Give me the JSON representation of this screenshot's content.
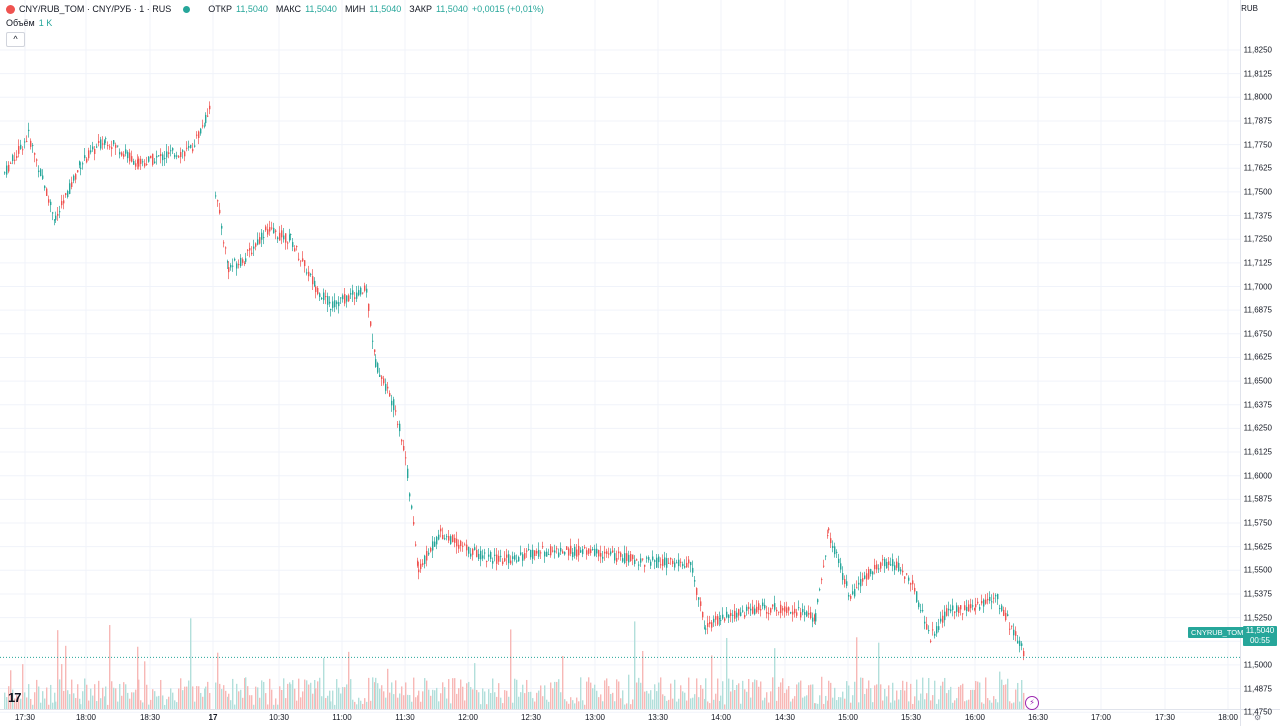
{
  "header": {
    "symbol_title": "CNY/RUB_TOM · CNY/РУБ · 1 · RUS",
    "open_label": "ОТКР",
    "open_value": "11,5040",
    "high_label": "МАКС",
    "high_value": "11,5040",
    "low_label": "МИН",
    "low_value": "11,5040",
    "close_label": "ЗАКР",
    "close_value": "11,5040",
    "change_value": "+0,0015 (+0,01%)"
  },
  "volume_legend": {
    "label": "Объём",
    "value": "1 K"
  },
  "currency": "RUB",
  "last_price": {
    "symbol": "CNYRUB_TOM",
    "value": "11,5040",
    "countdown": "00:55"
  },
  "tv_logo": "17",
  "colors": {
    "up": "#26a69a",
    "down": "#ef5350",
    "up_vol": "#b2dfdb",
    "down_vol": "#f7b8b6",
    "grid": "#f0f3fa"
  },
  "chart_data": {
    "type": "candlestick",
    "y_axis": {
      "ticks": [
        "11,8250",
        "11,8125",
        "11,8000",
        "11,7875",
        "11,7750",
        "11,7625",
        "11,7500",
        "11,7375",
        "11,7250",
        "11,7125",
        "11,7000",
        "11,6875",
        "11,6750",
        "11,6625",
        "11,6500",
        "11,6375",
        "11,6250",
        "11,6125",
        "11,6000",
        "11,5875",
        "11,5750",
        "11,5625",
        "11,5500",
        "11,5375",
        "11,5250",
        "11,5125",
        "11,5000",
        "11,4875",
        "11,4750"
      ],
      "range": [
        11.4675,
        11.8325
      ]
    },
    "x_axis": {
      "ticks": [
        "17:30",
        "18:00",
        "18:30",
        "17",
        "10:30",
        "11:00",
        "11:30",
        "12:00",
        "12:30",
        "13:00",
        "13:30",
        "14:00",
        "14:30",
        "15:00",
        "15:30",
        "16:00",
        "16:30",
        "17:00",
        "17:30",
        "18:00"
      ]
    },
    "series": [
      {
        "name": "CNY/RUB_TOM",
        "points": [
          [
            "17:30",
            11.76
          ],
          [
            "17:40",
            11.78
          ],
          [
            "17:55",
            11.735
          ],
          [
            "18:05",
            11.765
          ],
          [
            "18:15",
            11.778
          ],
          [
            "18:30",
            11.765
          ],
          [
            "18:45",
            11.77
          ],
          [
            "18:55",
            11.772
          ],
          [
            "19:00",
            11.788
          ],
          [
            "19:02",
            11.8
          ],
          [
            "10:00",
            11.75
          ],
          [
            "10:10",
            11.71
          ],
          [
            "10:20",
            11.715
          ],
          [
            "10:30",
            11.73
          ],
          [
            "10:40",
            11.725
          ],
          [
            "10:50",
            11.7
          ],
          [
            "11:00",
            11.69
          ],
          [
            "11:10",
            11.695
          ],
          [
            "11:15",
            11.698
          ],
          [
            "11:20",
            11.66
          ],
          [
            "11:25",
            11.635
          ],
          [
            "11:30",
            11.61
          ],
          [
            "11:35",
            11.55
          ],
          [
            "11:45",
            11.57
          ],
          [
            "12:00",
            11.56
          ],
          [
            "12:15",
            11.555
          ],
          [
            "12:30",
            11.56
          ],
          [
            "13:00",
            11.56
          ],
          [
            "13:15",
            11.555
          ],
          [
            "13:30",
            11.553
          ],
          [
            "13:45",
            11.52
          ],
          [
            "14:00",
            11.525
          ],
          [
            "14:15",
            11.53
          ],
          [
            "14:30",
            11.53
          ],
          [
            "14:45",
            11.525
          ],
          [
            "14:50",
            11.57
          ],
          [
            "15:00",
            11.535
          ],
          [
            "15:15",
            11.55
          ],
          [
            "15:20",
            11.555
          ],
          [
            "15:30",
            11.545
          ],
          [
            "15:45",
            11.515
          ],
          [
            "15:55",
            11.53
          ],
          [
            "16:05",
            11.53
          ],
          [
            "16:15",
            11.537
          ],
          [
            "16:20",
            11.504
          ]
        ]
      }
    ]
  }
}
